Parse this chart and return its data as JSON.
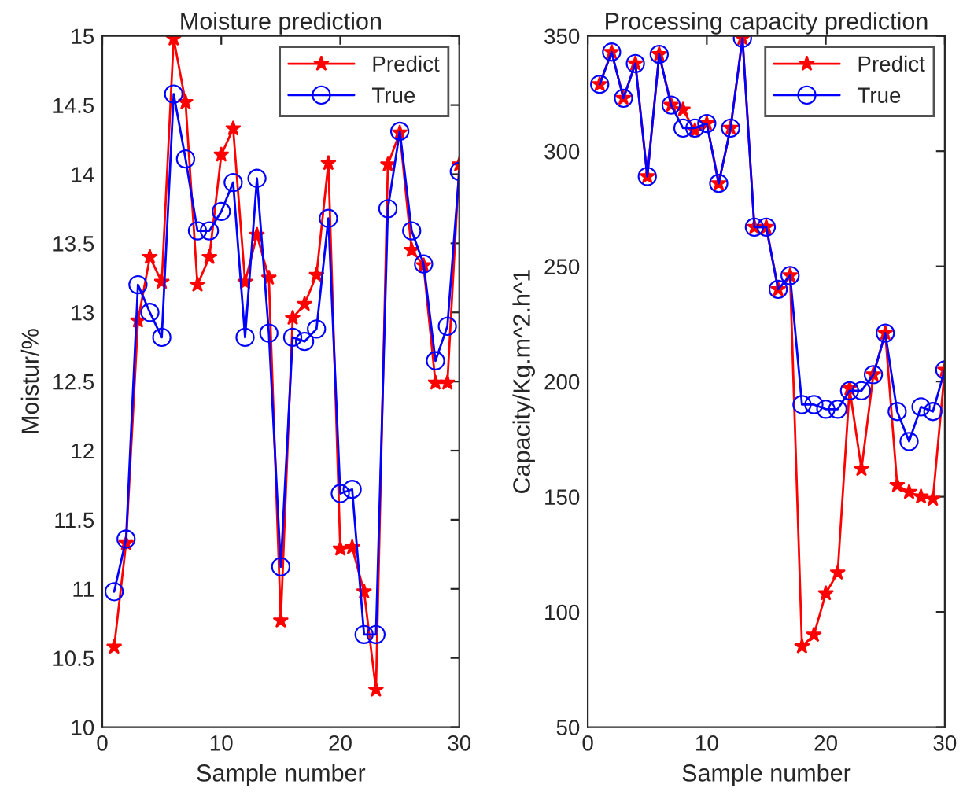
{
  "chart_data": [
    {
      "type": "line",
      "title": "Moisture prediction",
      "xlabel": "Sample number",
      "ylabel": "Moistur/%",
      "x": [
        1,
        2,
        3,
        4,
        5,
        6,
        7,
        8,
        9,
        10,
        11,
        12,
        13,
        14,
        15,
        16,
        17,
        18,
        19,
        20,
        21,
        22,
        23,
        24,
        25,
        26,
        27,
        28,
        29,
        30
      ],
      "xlim": [
        0,
        30
      ],
      "xticks": [
        0,
        10,
        20,
        30
      ],
      "ylim": [
        10,
        15
      ],
      "yticks": [
        10,
        {
          "value": 10.5,
          "label": "10.5"
        },
        11,
        {
          "value": 11.5,
          "label": "11.5"
        },
        12,
        {
          "value": 12.5,
          "label": "12.5"
        },
        13,
        {
          "value": 13.5,
          "label": "13.5"
        },
        14,
        {
          "value": 14.5,
          "label": "14.5"
        },
        15
      ],
      "legend": "top right",
      "grid": false,
      "series": [
        {
          "name": "Predict",
          "color": "#ff0000",
          "marker": "star",
          "values": [
            10.58,
            11.33,
            12.94,
            13.4,
            13.22,
            14.98,
            14.52,
            13.2,
            13.4,
            14.14,
            14.33,
            13.22,
            13.56,
            13.25,
            10.77,
            12.96,
            13.06,
            13.27,
            14.08,
            11.29,
            11.3,
            10.98,
            10.27,
            14.07,
            14.3,
            13.45,
            13.34,
            12.49,
            12.49,
            14.07
          ]
        },
        {
          "name": "True",
          "color": "#0000ff",
          "marker": "circle",
          "values": [
            10.98,
            11.36,
            13.2,
            13.0,
            12.82,
            14.58,
            14.11,
            13.59,
            13.59,
            13.73,
            13.94,
            12.82,
            13.97,
            12.85,
            11.16,
            12.82,
            12.79,
            12.88,
            13.68,
            11.69,
            11.72,
            10.67,
            10.67,
            13.75,
            14.31,
            13.59,
            13.35,
            12.65,
            12.9,
            14.02
          ]
        }
      ]
    },
    {
      "type": "line",
      "title": "Processing capacity prediction",
      "xlabel": "Sample number",
      "ylabel": "Capacity/Kg.m^2.h^1",
      "x": [
        1,
        2,
        3,
        4,
        5,
        6,
        7,
        8,
        9,
        10,
        11,
        12,
        13,
        14,
        15,
        16,
        17,
        18,
        19,
        20,
        21,
        22,
        23,
        24,
        25,
        26,
        27,
        28,
        29,
        30
      ],
      "xlim": [
        0,
        30
      ],
      "xticks": [
        0,
        10,
        20,
        30
      ],
      "ylim": [
        50,
        350
      ],
      "yticks": [
        50,
        100,
        150,
        200,
        250,
        300,
        350
      ],
      "legend": "top right",
      "grid": false,
      "series": [
        {
          "name": "Predict",
          "color": "#ff0000",
          "marker": "star",
          "values": [
            329,
            343,
            323,
            338,
            289,
            342,
            320,
            318,
            309,
            312,
            286,
            310,
            349,
            267,
            267,
            240,
            246,
            85,
            90,
            108,
            117,
            197,
            162,
            203,
            221,
            155,
            152,
            150,
            149,
            205
          ]
        },
        {
          "name": "True",
          "color": "#0000ff",
          "marker": "circle",
          "values": [
            329,
            343,
            323,
            338,
            289,
            342,
            320,
            310,
            310,
            312,
            286,
            310,
            349,
            267,
            267,
            240,
            246,
            190,
            190,
            188,
            188,
            196,
            196,
            203,
            221,
            187,
            174,
            189,
            187,
            205
          ]
        }
      ]
    }
  ]
}
